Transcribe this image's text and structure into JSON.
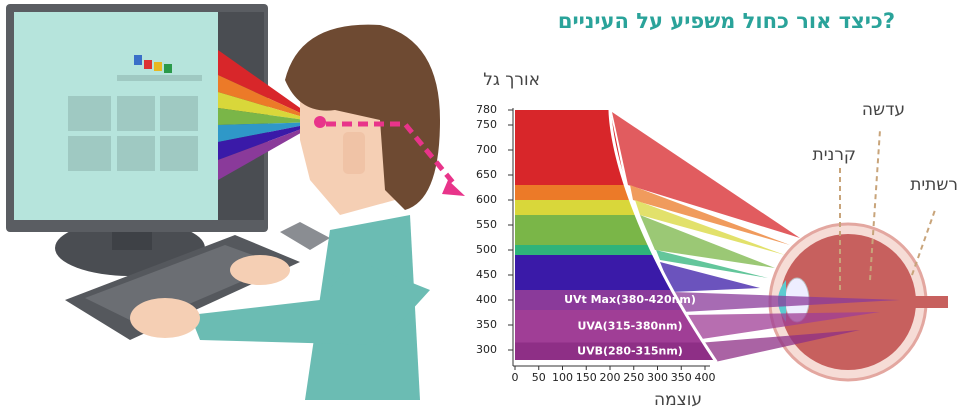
{
  "title": "כיצד אור כחול משפיע על העיניים?",
  "y_axis_label": "אורך גל",
  "x_axis_label": "עוצמה",
  "yticks": [
    300,
    350,
    400,
    450,
    500,
    550,
    600,
    650,
    700,
    750,
    780
  ],
  "xticks": [
    0,
    50,
    100,
    150,
    200,
    250,
    300,
    350,
    400
  ],
  "bands": [
    {
      "color": "#d8262a",
      "from": 630,
      "to": 780
    },
    {
      "color": "#ec7a28",
      "from": 600,
      "to": 630
    },
    {
      "color": "#d9d73a",
      "from": 570,
      "to": 600
    },
    {
      "color": "#7ab648",
      "from": 510,
      "to": 570
    },
    {
      "color": "#2fb37a",
      "from": 490,
      "to": 510
    },
    {
      "color": "#3a1aa8",
      "from": 420,
      "to": 490
    },
    {
      "color": "#8a3a9a",
      "from": 380,
      "to": 420,
      "label": "UVt Max(380-420nm)"
    },
    {
      "color": "#a03e96",
      "from": 315,
      "to": 380,
      "label": "UVA(315-380nm)"
    },
    {
      "color": "#8e2f86",
      "from": 280,
      "to": 315,
      "label": "UVB(280-315nm)"
    }
  ],
  "eye_labels": {
    "lens": "עדשה",
    "cornea": "קרנית",
    "retina": "רשתית"
  }
}
